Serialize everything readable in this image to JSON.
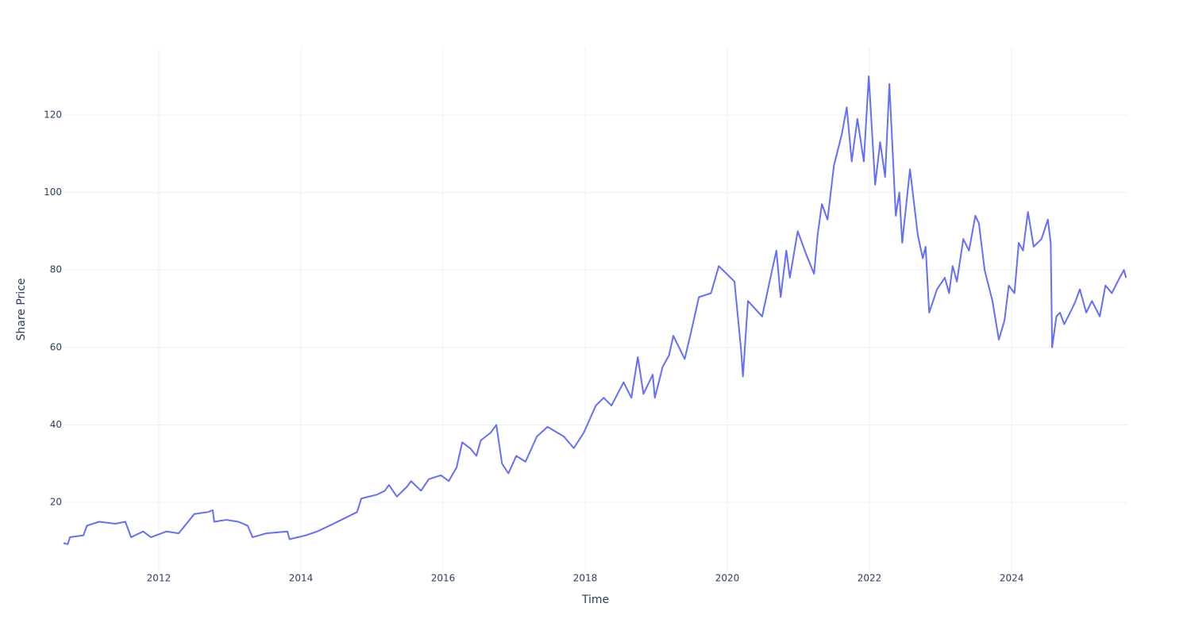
{
  "chart_data": {
    "type": "line",
    "x_label": "Time",
    "y_label": "Share Price",
    "x": [
      2010.66,
      2010.72,
      2010.75,
      2010.94,
      2010.99,
      2011.16,
      2011.39,
      2011.53,
      2011.61,
      2011.78,
      2011.89,
      2012.11,
      2012.28,
      2012.39,
      2012.5,
      2012.69,
      2012.76,
      2012.78,
      2012.95,
      2013.12,
      2013.25,
      2013.32,
      2013.51,
      2013.81,
      2013.84,
      2014.07,
      2014.23,
      2014.46,
      2014.57,
      2014.79,
      2014.85,
      2015.07,
      2015.18,
      2015.24,
      2015.35,
      2015.49,
      2015.55,
      2015.69,
      2015.8,
      2015.97,
      2016.08,
      2016.19,
      2016.27,
      2016.38,
      2016.47,
      2016.53,
      2016.67,
      2016.75,
      2016.83,
      2016.92,
      2017.03,
      2017.16,
      2017.32,
      2017.47,
      2017.7,
      2017.84,
      2017.98,
      2018.15,
      2018.26,
      2018.37,
      2018.54,
      2018.65,
      2018.74,
      2018.82,
      2018.95,
      2018.98,
      2019.09,
      2019.18,
      2019.24,
      2019.4,
      2019.49,
      2019.6,
      2019.77,
      2019.88,
      2019.99,
      2020.1,
      2020.19,
      2020.22,
      2020.29,
      2020.49,
      2020.63,
      2020.69,
      2020.75,
      2020.83,
      2020.88,
      2020.99,
      2021.11,
      2021.22,
      2021.27,
      2021.33,
      2021.41,
      2021.5,
      2021.61,
      2021.68,
      2021.75,
      2021.83,
      2021.92,
      2021.99,
      2022.08,
      2022.15,
      2022.22,
      2022.28,
      2022.37,
      2022.42,
      2022.46,
      2022.57,
      2022.68,
      2022.75,
      2022.79,
      2022.84,
      2022.95,
      2023.06,
      2023.12,
      2023.17,
      2023.23,
      2023.32,
      2023.4,
      2023.49,
      2023.54,
      2023.62,
      2023.73,
      2023.82,
      2023.9,
      2023.96,
      2024.04,
      2024.1,
      2024.16,
      2024.23,
      2024.31,
      2024.42,
      2024.51,
      2024.55,
      2024.57,
      2024.63,
      2024.68,
      2024.74,
      2024.85,
      2024.9,
      2024.96,
      2025.05,
      2025.13,
      2025.24,
      2025.32,
      2025.41,
      2025.52,
      2025.58,
      2025.61
    ],
    "series": [
      {
        "name": "Share Price",
        "color": "#636efa",
        "values": [
          9.5,
          9.2,
          11,
          11.5,
          14,
          15,
          14.5,
          15,
          11,
          12.5,
          11,
          12.5,
          12,
          14.5,
          17,
          17.5,
          18,
          15,
          15.5,
          15,
          14,
          11,
          12,
          12.5,
          10.5,
          11.5,
          12.5,
          14.5,
          15.5,
          17.5,
          21,
          22,
          23,
          24.5,
          21.5,
          24,
          25.5,
          23,
          26,
          27,
          25.5,
          29,
          35.5,
          34,
          32,
          36,
          38,
          40,
          30,
          27.5,
          32,
          30.5,
          37,
          39.5,
          37,
          34,
          38,
          45,
          47,
          45,
          51,
          47,
          57.5,
          48,
          53,
          47,
          55,
          58,
          63,
          57,
          64,
          73,
          74,
          81,
          79,
          77,
          60,
          52.5,
          72,
          68,
          80,
          85,
          73,
          85,
          78,
          90,
          84,
          79,
          89,
          97,
          93,
          107,
          115,
          122,
          108,
          119,
          108,
          130,
          102,
          113,
          104,
          128,
          94,
          100,
          87,
          106,
          89,
          83,
          86,
          69,
          75,
          78,
          74,
          81,
          77,
          88,
          85,
          94,
          92,
          80,
          72,
          62,
          67,
          76,
          74,
          87,
          85,
          95,
          86,
          88,
          93,
          87,
          60,
          68,
          69,
          66,
          70,
          72,
          75,
          69,
          72,
          68,
          76,
          74,
          78,
          80,
          78
        ]
      }
    ],
    "xlim": [
      2010.66,
      2025.63
    ],
    "ylim": [
      2.2,
      137.4
    ],
    "xticks": [
      2012,
      2014,
      2016,
      2018,
      2020,
      2022,
      2024
    ],
    "yticks": [
      20,
      40,
      60,
      80,
      100,
      120
    ],
    "grid": true
  }
}
